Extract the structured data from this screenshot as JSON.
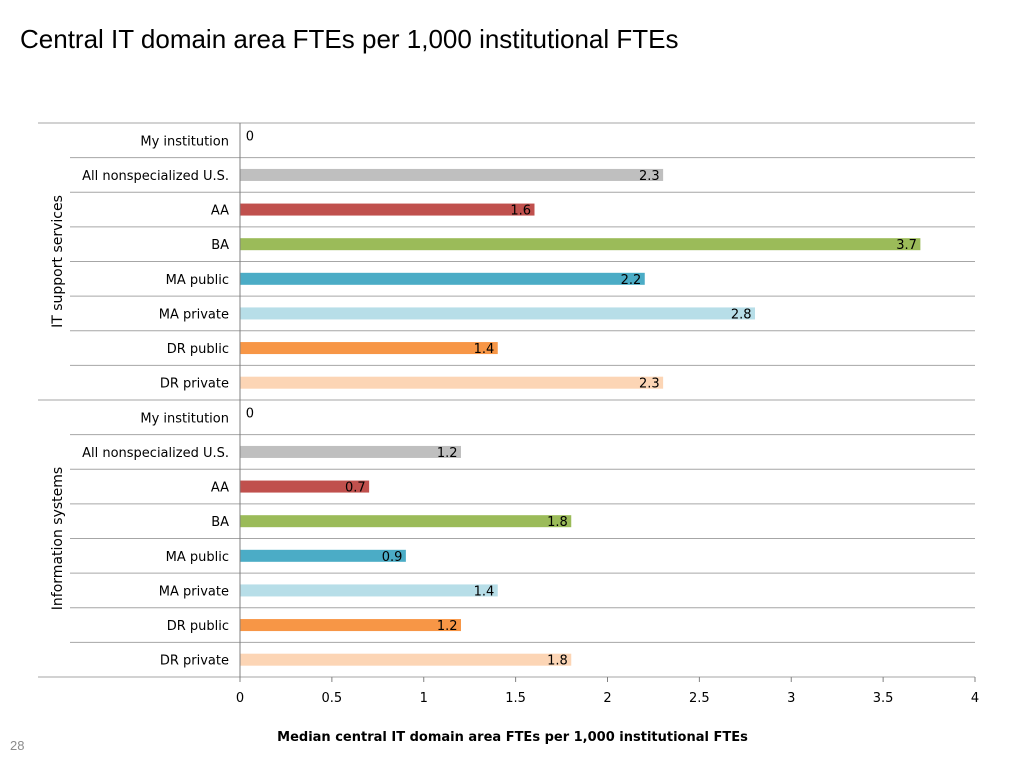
{
  "slide": {
    "title": "Central IT domain area FTEs per 1,000 institutional FTEs",
    "page_number": "28"
  },
  "chart_data": {
    "type": "bar",
    "orientation": "horizontal",
    "xlabel": "Median central IT domain area FTEs per 1,000 institutional FTEs",
    "xlim": [
      0,
      4
    ],
    "xticks": [
      0,
      0.5,
      1,
      1.5,
      2,
      2.5,
      3,
      3.5,
      4
    ],
    "data_labels": true,
    "groups": [
      {
        "name": "IT support services",
        "categories": [
          "My institution",
          "All nonspecialized U.S.",
          "AA",
          "BA",
          "MA public",
          "MA private",
          "DR public",
          "DR private"
        ],
        "values": [
          0,
          2.3,
          1.6,
          3.7,
          2.2,
          2.8,
          1.4,
          2.3
        ]
      },
      {
        "name": "Information systems",
        "categories": [
          "My institution",
          "All nonspecialized U.S.",
          "AA",
          "BA",
          "MA public",
          "MA private",
          "DR public",
          "DR private"
        ],
        "values": [
          0,
          1.2,
          0.7,
          1.8,
          0.9,
          1.4,
          1.2,
          1.8
        ]
      }
    ],
    "colors": {
      "My institution": "#7f7f7f",
      "All nonspecialized U.S.": "#bfbfbf",
      "AA": "#c0504d",
      "BA": "#9bbb59",
      "MA public": "#4bacc6",
      "MA private": "#b7dee8",
      "DR public": "#f79646",
      "DR private": "#fcd5b5"
    }
  }
}
